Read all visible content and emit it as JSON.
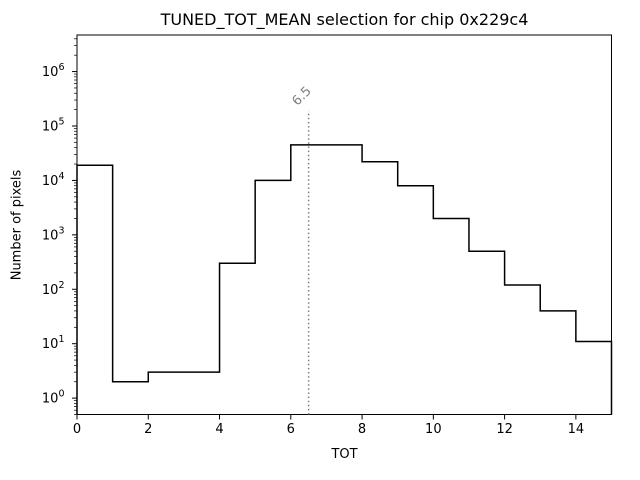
{
  "chart_data": {
    "type": "bar",
    "subtype": "step-histogram",
    "title": "TUNED_TOT_MEAN selection for chip 0x229c4",
    "xlabel": "TOT",
    "ylabel": "Number of pixels",
    "bin_edges": [
      0,
      1,
      2,
      3,
      4,
      5,
      6,
      7,
      8,
      9,
      10,
      11,
      12,
      13,
      14,
      15
    ],
    "counts": [
      19000,
      2,
      3,
      3,
      300,
      10000,
      45000,
      45000,
      22000,
      8000,
      2000,
      500,
      120,
      40,
      11
    ],
    "x_ticks": [
      0,
      2,
      4,
      6,
      8,
      10,
      12,
      14
    ],
    "y_tick_base": "10",
    "y_tick_exponents": [
      0,
      1,
      2,
      3,
      4,
      5,
      6
    ],
    "xlim": [
      0,
      15
    ],
    "ylim": [
      0.5,
      4700000
    ],
    "yscale": "log",
    "grid": false,
    "legend": null,
    "line_color": "#000000",
    "background_color": "#ffffff",
    "vline": {
      "x": 6.5,
      "label": "6.5",
      "color": "#808080",
      "style": "dotted",
      "ymax_frac": 0.8,
      "label_rotation_deg": -45
    }
  }
}
